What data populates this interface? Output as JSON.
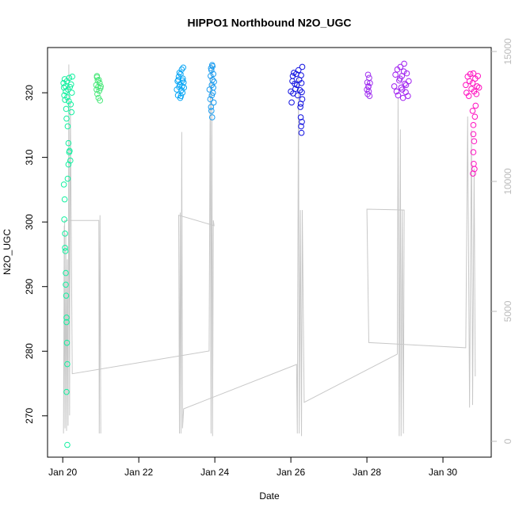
{
  "chart_data": {
    "type": "scatter",
    "title": "HIPPO1 Northbound N2O_UGC",
    "x_label": "Date",
    "y_label": "N2O_UGC",
    "xlim": [
      19.6,
      31.27
    ],
    "xticks": [
      {
        "value": 20,
        "label": "Jan 20"
      },
      {
        "value": 22,
        "label": "Jan 22"
      },
      {
        "value": 24,
        "label": "Jan 24"
      },
      {
        "value": 26,
        "label": "Jan 26"
      },
      {
        "value": 28,
        "label": "Jan 28"
      },
      {
        "value": 30,
        "label": "Jan 30"
      }
    ],
    "ylim": [
      263.6,
      327.0
    ],
    "yticks": [
      270,
      280,
      290,
      300,
      310,
      320
    ],
    "y2lim": [
      -610,
      15152
    ],
    "y2ticks": [
      0,
      5000,
      10000,
      15000
    ],
    "series": [
      {
        "color": "#14f0a0",
        "x": [
          20.02,
          20.03,
          20.04,
          20.05,
          20.06,
          20.07,
          20.08,
          20.09,
          20.1,
          20.11,
          20.12,
          20.13,
          20.14,
          20.15,
          20.16,
          20.17,
          20.18,
          20.19,
          20.2,
          20.21,
          20.22,
          20.23,
          20.24,
          20.25,
          20.03,
          20.05,
          20.06,
          20.07,
          20.08,
          20.09,
          20.1,
          20.11,
          20.12,
          20.04,
          20.06,
          20.08,
          20.1,
          20.13,
          20.15,
          20.17,
          20.1,
          20.12
        ],
        "values": [
          321.5,
          320.8,
          319.6,
          322.1,
          318.9,
          321.0,
          320.2,
          317.5,
          316.0,
          321.8,
          319.3,
          314.8,
          320.5,
          312.2,
          318.7,
          322.3,
          311.0,
          320.9,
          309.5,
          318.2,
          321.3,
          317.0,
          320.0,
          322.5,
          305.8,
          303.5,
          298.2,
          295.5,
          292.1,
          288.6,
          285.2,
          281.3,
          278.0,
          300.4,
          296.0,
          290.3,
          284.5,
          306.7,
          308.9,
          310.8,
          273.7,
          265.5
        ]
      },
      {
        "color": "#4ce87c",
        "x": [
          20.88,
          20.89,
          20.9,
          20.91,
          20.92,
          20.93,
          20.94,
          20.95,
          20.96,
          20.97,
          20.98,
          20.99,
          21.0,
          20.9
        ],
        "values": [
          321.2,
          320.5,
          322.4,
          319.8,
          321.9,
          320.9,
          319.2,
          322.0,
          320.3,
          321.5,
          318.8,
          320.7,
          321.0,
          322.6
        ]
      },
      {
        "color": "#0aa6f5",
        "x": [
          23.0,
          23.02,
          23.03,
          23.05,
          23.06,
          23.08,
          23.09,
          23.1,
          23.12,
          23.13,
          23.14,
          23.15,
          23.16,
          23.17,
          23.18,
          23.19,
          23.04,
          23.11,
          23.07,
          23.15
        ],
        "values": [
          320.5,
          321.8,
          319.6,
          322.5,
          320.9,
          321.3,
          319.2,
          322.9,
          320.4,
          323.6,
          321.0,
          320.0,
          322.2,
          323.9,
          321.6,
          320.8,
          322.0,
          319.5,
          323.1,
          321.9
        ]
      },
      {
        "color": "#1a9cf0",
        "x": [
          23.86,
          23.88,
          23.89,
          23.9,
          23.91,
          23.92,
          23.93,
          23.94,
          23.95,
          23.96,
          23.97,
          23.98,
          23.9,
          23.92,
          23.94,
          23.96,
          23.91,
          23.93
        ],
        "values": [
          320.5,
          319.0,
          322.6,
          317.8,
          323.5,
          321.2,
          316.2,
          324.1,
          320.0,
          322.9,
          318.5,
          321.7,
          323.8,
          319.6,
          322.0,
          320.8,
          317.2,
          324.3
        ]
      },
      {
        "color": "#1010e0",
        "x": [
          26.0,
          26.02,
          26.04,
          26.05,
          26.06,
          26.08,
          26.1,
          26.12,
          26.14,
          26.16,
          26.18,
          26.2,
          26.22,
          26.24,
          26.25,
          26.26,
          26.27,
          26.28,
          26.29,
          26.3,
          26.26,
          26.28,
          26.3,
          26.27,
          26.29
        ],
        "values": [
          320.2,
          318.5,
          321.8,
          322.6,
          319.9,
          323.1,
          321.4,
          320.6,
          322.9,
          321.2,
          319.6,
          323.5,
          322.0,
          320.4,
          317.8,
          316.2,
          314.8,
          313.8,
          315.5,
          324.0,
          318.3,
          321.5,
          319.0,
          322.7,
          320.1
        ]
      },
      {
        "color": "#a030f0",
        "x": [
          28.0,
          28.01,
          28.02,
          28.03,
          28.04,
          28.05,
          28.06,
          28.07,
          28.08,
          28.04
        ],
        "values": [
          320.5,
          321.6,
          319.8,
          322.8,
          321.0,
          320.2,
          322.3,
          319.5,
          321.5,
          320.9
        ]
      },
      {
        "color": "#a020f0",
        "x": [
          28.72,
          28.75,
          28.78,
          28.8,
          28.82,
          28.85,
          28.88,
          28.9,
          28.92,
          28.95,
          28.98,
          29.0,
          29.02,
          29.05,
          29.08,
          29.1,
          28.87,
          28.93,
          28.97,
          29.03
        ],
        "values": [
          321.0,
          322.8,
          320.2,
          323.6,
          319.6,
          321.9,
          324.0,
          320.8,
          322.6,
          319.2,
          324.5,
          321.4,
          320.1,
          323.0,
          319.5,
          321.8,
          322.2,
          320.5,
          323.3,
          321.2
        ]
      },
      {
        "color": "#ff10c0",
        "x": [
          30.6,
          30.62,
          30.65,
          30.68,
          30.7,
          30.72,
          30.75,
          30.78,
          30.8,
          30.82,
          30.85,
          30.88,
          30.9,
          30.92,
          30.95,
          30.78,
          30.8,
          30.82,
          30.8,
          30.81,
          30.79,
          30.83,
          30.8,
          30.84,
          30.86
        ],
        "values": [
          321.2,
          320.0,
          322.5,
          319.5,
          321.8,
          322.9,
          320.6,
          321.5,
          323.0,
          320.2,
          322.2,
          319.8,
          321.0,
          322.6,
          320.8,
          317.2,
          315.0,
          312.5,
          310.8,
          309.0,
          307.5,
          308.2,
          313.6,
          316.3,
          318.0
        ]
      },
      {
        "color": "#c8c8c8",
        "axis": "y2",
        "x": [
          21.0,
          20.98,
          20.96,
          20.95,
          20.05,
          20.02,
          20.04,
          20.06,
          20.08,
          20.1,
          20.12,
          20.14,
          20.16,
          20.18,
          20.2,
          20.25,
          23.85,
          23.88,
          23.9,
          23.92,
          23.94,
          23.96,
          23.98,
          23.05,
          23.07,
          23.09,
          23.11,
          23.13,
          23.15,
          23.18,
          26.15,
          26.17,
          26.2,
          26.22,
          26.25,
          26.28,
          26.3,
          26.35,
          28.8,
          28.82,
          28.85,
          28.88,
          28.9,
          28.93,
          28.96,
          28.98,
          28.0,
          28.05,
          30.6,
          30.65,
          30.7,
          30.75,
          30.78,
          30.82,
          30.85
        ],
        "values": [
          300,
          8700,
          300,
          8500,
          8500,
          300,
          8300,
          500,
          8000,
          400,
          7000,
          600,
          14500,
          1000,
          13000,
          2600,
          3476,
          14000,
          300,
          14500,
          200,
          8500,
          8300,
          8700,
          300,
          8800,
          300,
          11900,
          500,
          1250,
          2957,
          300,
          14000,
          300,
          8900,
          200,
          8900,
          1500,
          3354,
          13200,
          200,
          12000,
          200,
          8900,
          300,
          8900,
          8933,
          3800,
          3600,
          12500,
          1300,
          12000,
          1400,
          10500,
          2500
        ]
      }
    ]
  }
}
